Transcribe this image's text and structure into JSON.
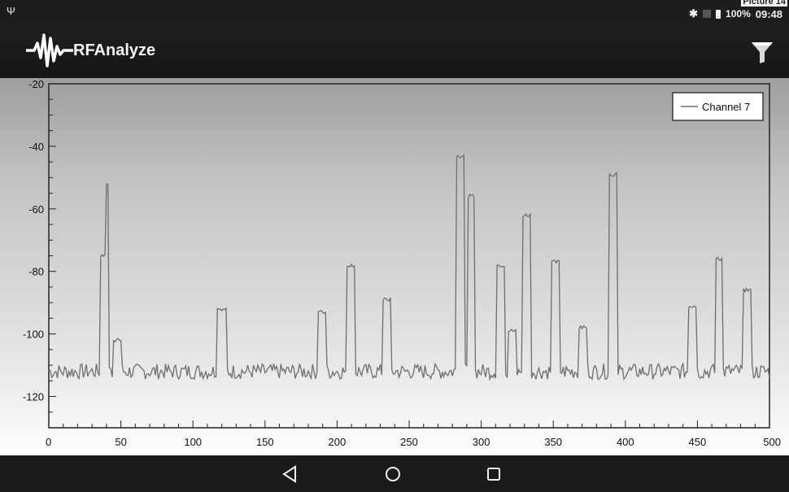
{
  "picture_label": "Picture 14",
  "status_bar": {
    "usb_icon": "usb-icon",
    "bluetooth_icon": "bluetooth-icon",
    "signal_icon": "signal-icon",
    "battery_icon": "battery-icon",
    "battery": "100%",
    "time": "09:48"
  },
  "toolbar": {
    "app_title": "RFAnalyze",
    "logo_icon": "waveform-logo-icon",
    "filter_icon": "filter-icon"
  },
  "navigation_bar": {
    "back_icon": "back-icon",
    "home_icon": "home-icon",
    "recents_icon": "recents-icon"
  },
  "colors": {
    "trace": "#6e6e6e",
    "status_bar": "#1d1d1d",
    "toolbar": "#1a1a1a",
    "nav_bar": "#1b1b1b"
  },
  "chart_data": {
    "type": "line",
    "x_ticks": [
      0,
      50,
      100,
      150,
      200,
      250,
      300,
      350,
      400,
      450,
      500
    ],
    "y_ticks": [
      -20,
      -40,
      -60,
      -80,
      -100,
      -120
    ],
    "xlim": [
      0,
      500
    ],
    "ylim": [
      -130,
      -20
    ],
    "legend_position": "top-right",
    "series": [
      {
        "name": "Channel 7",
        "baseline": -112,
        "peaks": [
          {
            "x_start": 36,
            "x_end": 41,
            "value": -75
          },
          {
            "x_start": 40,
            "x_end": 41,
            "value": -52
          },
          {
            "x_start": 45,
            "x_end": 50,
            "value": -102
          },
          {
            "x_start": 117,
            "x_end": 123,
            "value": -92
          },
          {
            "x_start": 187,
            "x_end": 192,
            "value": -93
          },
          {
            "x_start": 207,
            "x_end": 212,
            "value": -78
          },
          {
            "x_start": 232,
            "x_end": 237,
            "value": -89
          },
          {
            "x_start": 283,
            "x_end": 288,
            "value": -43
          },
          {
            "x_start": 291,
            "x_end": 295,
            "value": -56
          },
          {
            "x_start": 311,
            "x_end": 316,
            "value": -78
          },
          {
            "x_start": 319,
            "x_end": 324,
            "value": -99
          },
          {
            "x_start": 329,
            "x_end": 334,
            "value": -62
          },
          {
            "x_start": 349,
            "x_end": 354,
            "value": -77
          },
          {
            "x_start": 368,
            "x_end": 373,
            "value": -98
          },
          {
            "x_start": 389,
            "x_end": 394,
            "value": -49
          },
          {
            "x_start": 444,
            "x_end": 449,
            "value": -91
          },
          {
            "x_start": 463,
            "x_end": 467,
            "value": -76
          },
          {
            "x_start": 482,
            "x_end": 487,
            "value": -86
          }
        ]
      }
    ]
  }
}
